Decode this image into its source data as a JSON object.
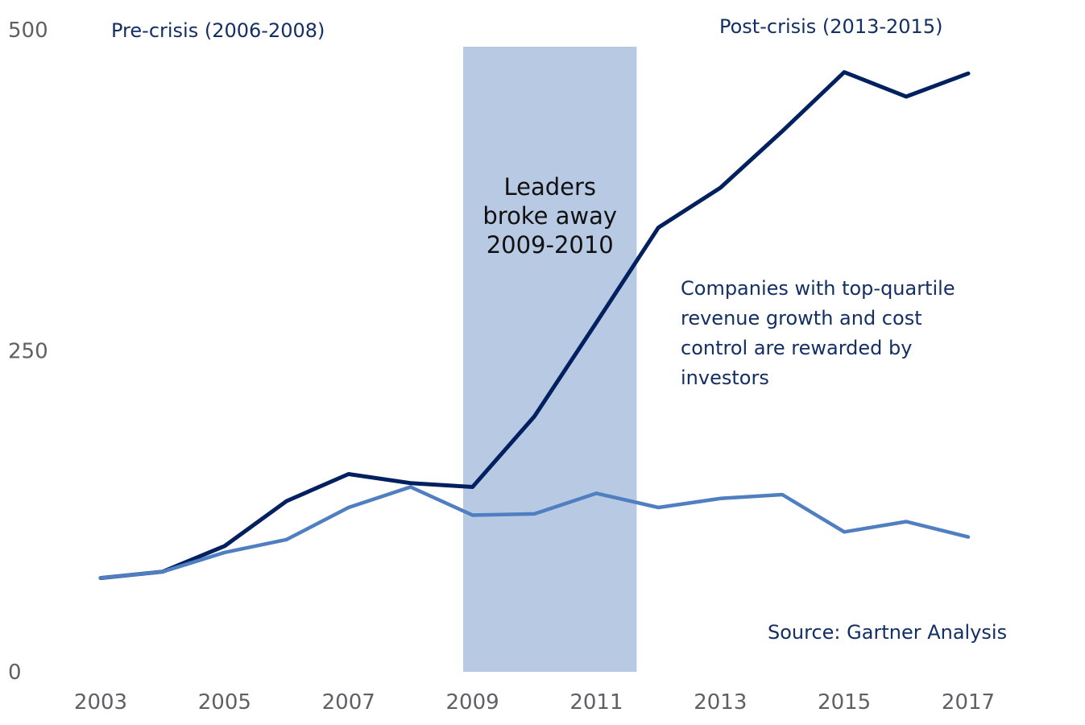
{
  "chart_data": {
    "type": "line",
    "title": "",
    "xlabel": "",
    "ylabel": "",
    "x": [
      2003,
      2004,
      2005,
      2006,
      2007,
      2008,
      2009,
      2010,
      2011,
      2012,
      2013,
      2014,
      2015,
      2016,
      2017
    ],
    "x_ticks": [
      "2003",
      "2005",
      "2007",
      "2009",
      "2011",
      "2013",
      "2015",
      "2017"
    ],
    "y_ticks": [
      "0",
      "250",
      "500"
    ],
    "xlim": [
      2003,
      2017
    ],
    "ylim": [
      0,
      500
    ],
    "grid": false,
    "series": [
      {
        "color": "#002060",
        "values": [
          73,
          78,
          98,
          133,
          154,
          147,
          144,
          199,
          272,
          346,
          377,
          421,
          467,
          448,
          466
        ]
      },
      {
        "color": "#4f7fc0",
        "values": [
          73,
          78,
          93,
          103,
          128,
          144,
          122,
          123,
          139,
          128,
          135,
          138,
          109,
          117,
          105
        ]
      }
    ],
    "shaded_region": {
      "x_start": 2008.85,
      "x_end": 2011.65,
      "color": "#b7c9e3",
      "label_lines": [
        "Leaders",
        "broke away",
        "2009-2010"
      ]
    },
    "annotations": {
      "pre_crisis": "Pre-crisis (2006-2008)",
      "post_crisis": "Post-crisis (2013-2015)",
      "note_lines": [
        "Companies with top-quartile",
        "revenue growth and cost",
        "control are rewarded by",
        "investors"
      ],
      "source": "Source: Gartner Analysis"
    }
  }
}
